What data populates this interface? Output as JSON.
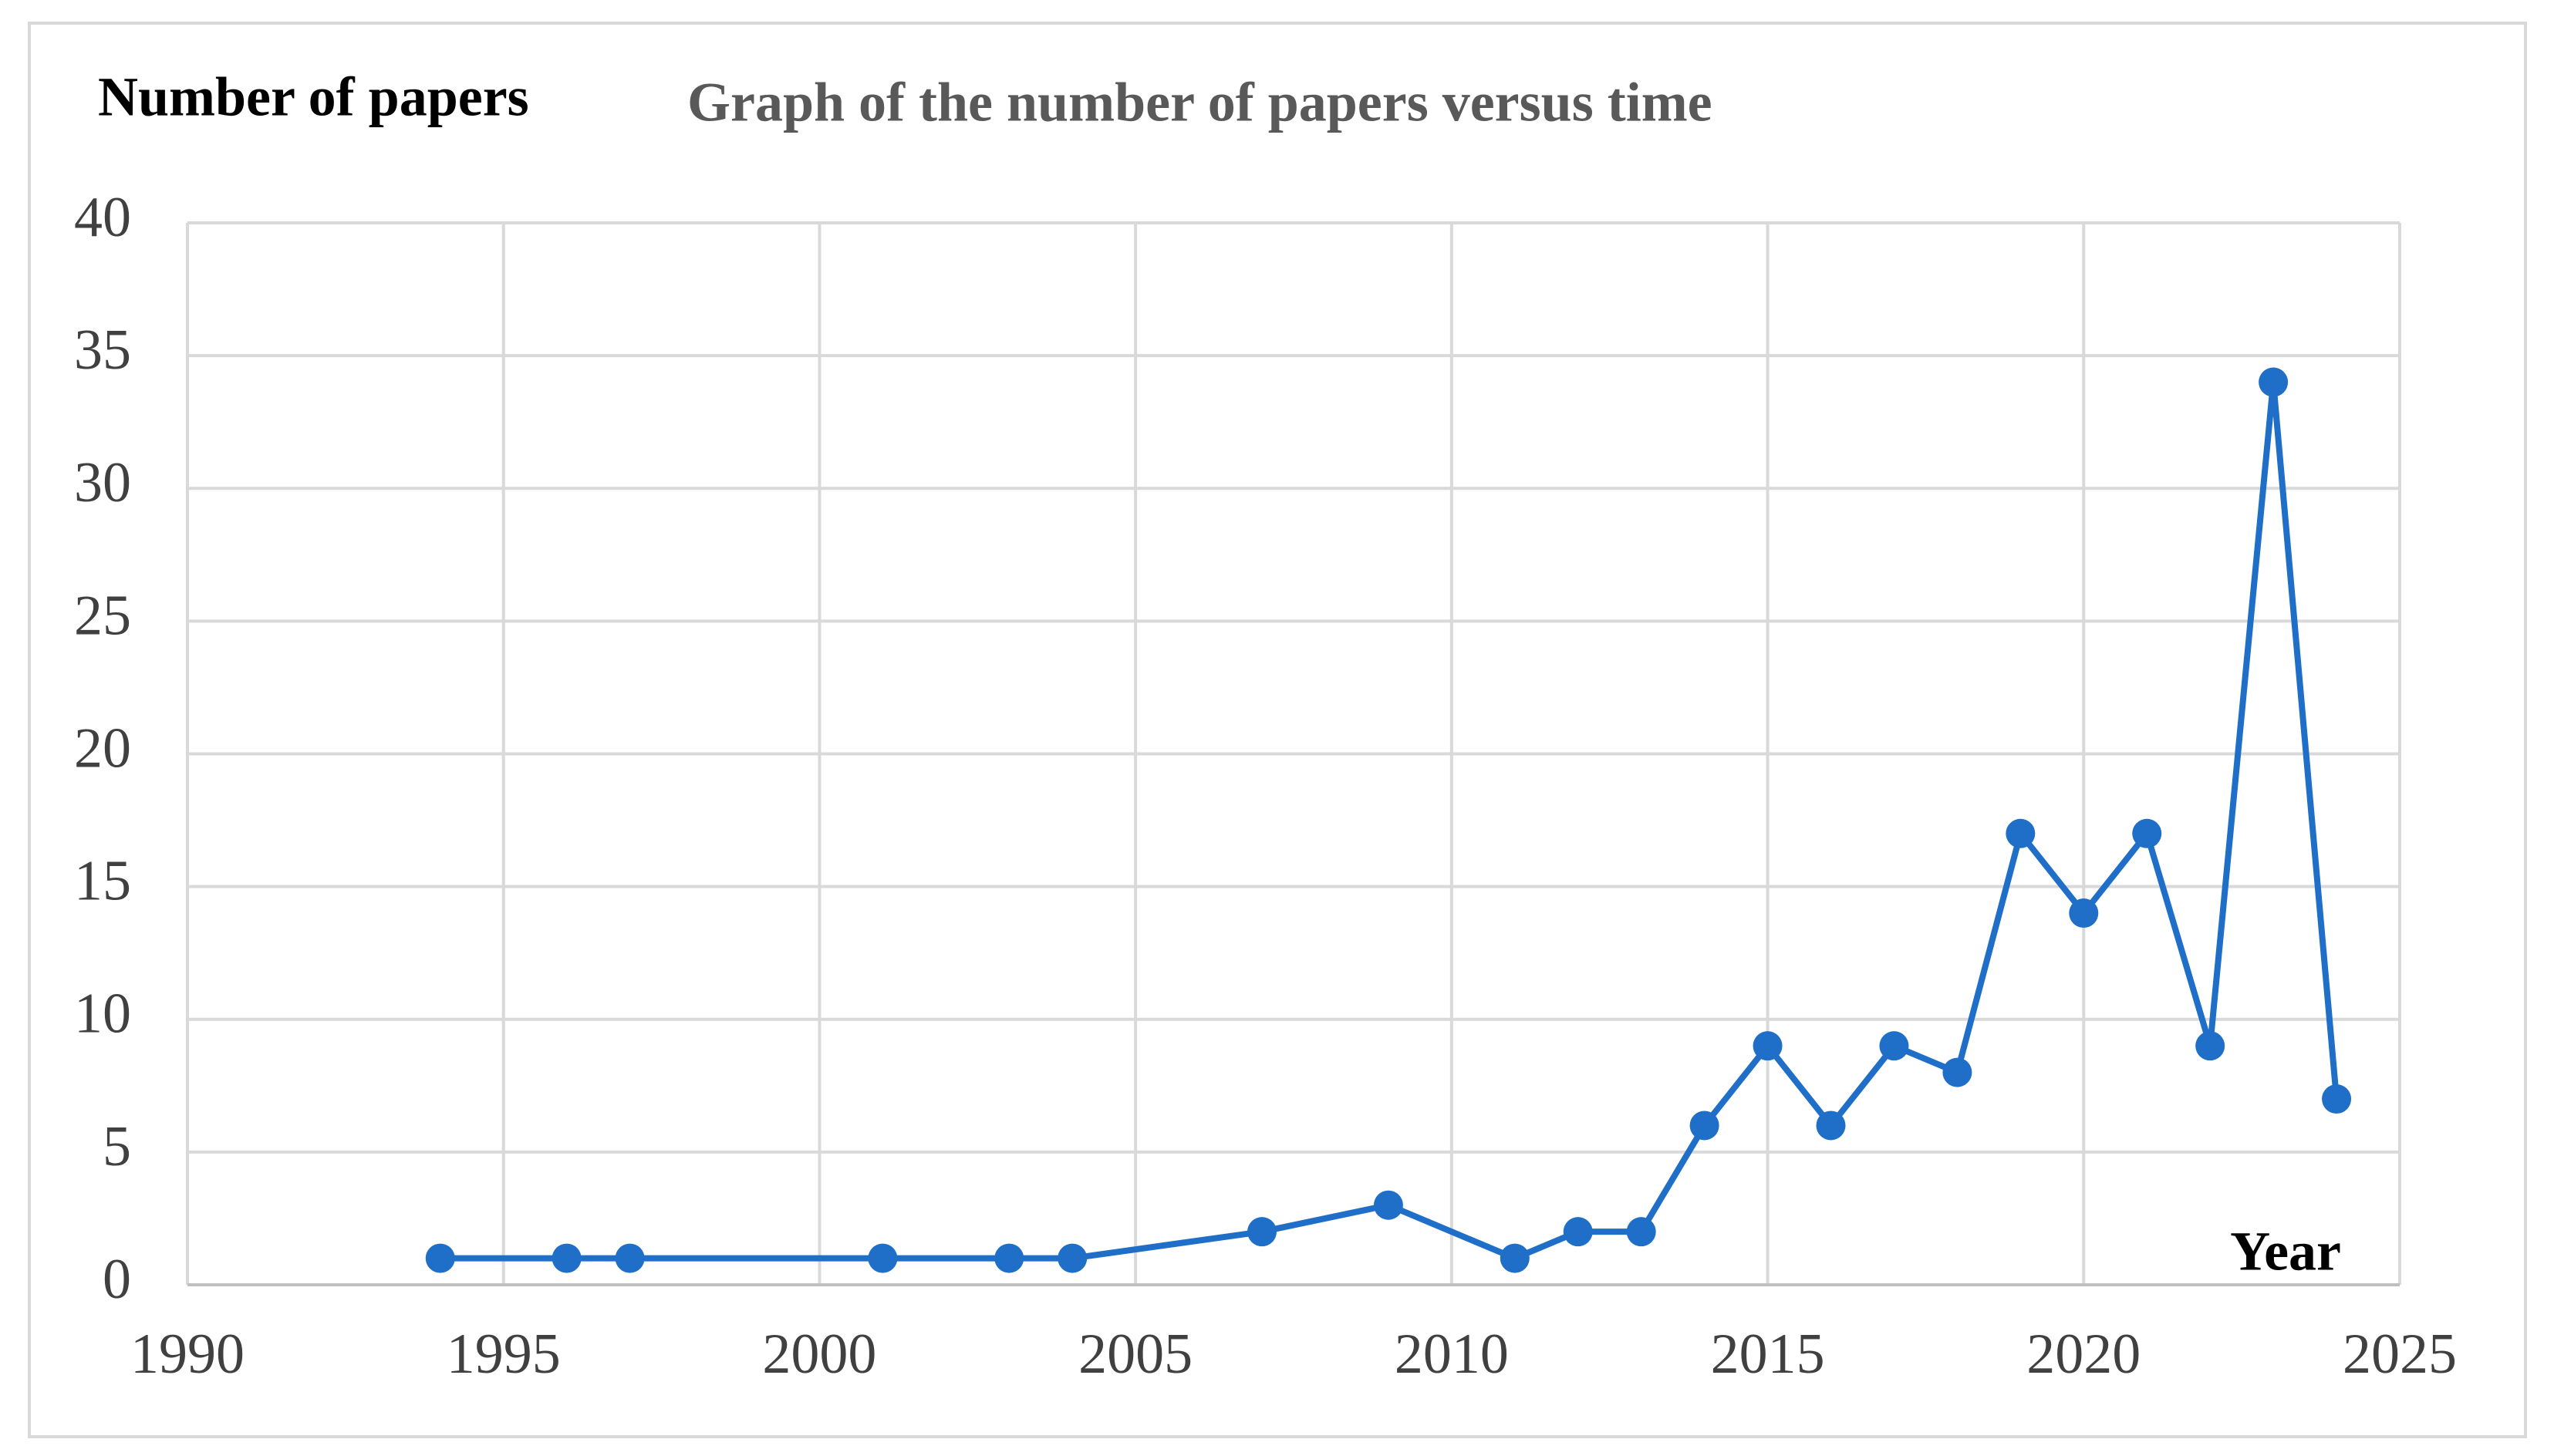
{
  "chart_data": {
    "type": "line",
    "title": "Graph of the number of papers versus time",
    "y_label": "Number of papers",
    "x_label": "Year",
    "x": [
      1994,
      1996,
      1997,
      2001,
      2003,
      2004,
      2007,
      2009,
      2011,
      2012,
      2013,
      2014,
      2015,
      2016,
      2017,
      2018,
      2019,
      2020,
      2021,
      2022,
      2023,
      2024
    ],
    "series": [
      {
        "color": "#1f6fc9",
        "values": [
          1,
          1,
          1,
          1,
          1,
          1,
          2,
          3,
          1,
          2,
          2,
          6,
          9,
          6,
          9,
          8,
          17,
          14,
          17,
          9,
          34,
          7
        ]
      }
    ],
    "xlim": [
      1990,
      2025
    ],
    "xticks": [
      1990,
      1995,
      2000,
      2005,
      2010,
      2015,
      2020,
      2025
    ],
    "ylim": [
      0,
      40
    ],
    "yticks": [
      0,
      5,
      10,
      15,
      20,
      25,
      30,
      35,
      40
    ],
    "grid": true
  }
}
